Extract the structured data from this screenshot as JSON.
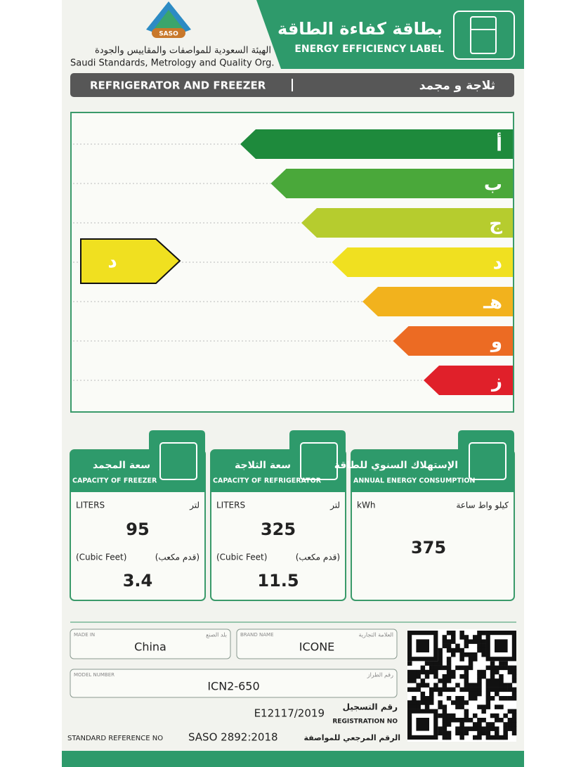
{
  "header": {
    "logo": "SASO",
    "org_ar": "الهيئة السعودية للمواصفات والمقاييس والجودة",
    "org_en": "Saudi Standards, Metrology and Quality Org.",
    "title_ar": "بطاقة كفاءة الطاقة",
    "title_en": "ENERGY EFFICIENCY LABEL"
  },
  "product": {
    "en": "REFRIGERATOR AND FREEZER",
    "ar": "ثلاجة و مجمد"
  },
  "rating": {
    "classes": [
      {
        "label": "أ",
        "color": "#1e8a3c"
      },
      {
        "label": "ب",
        "color": "#4aa83a"
      },
      {
        "label": "ج",
        "color": "#b6cc2e"
      },
      {
        "label": "د",
        "color": "#f0e020"
      },
      {
        "label": "هـ",
        "color": "#f2b21d"
      },
      {
        "label": "و",
        "color": "#ec6b23"
      },
      {
        "label": "ز",
        "color": "#e0202a"
      }
    ],
    "rated": "د",
    "rated_color": "#f0e020"
  },
  "boxes": [
    {
      "title_ar": "سعة المجمد",
      "title_en": "CAPACITY OF FREEZER",
      "unit_en": "LITERS",
      "unit_ar": "لتر",
      "value": "95",
      "unit2_en": "(Cubic Feet)",
      "unit2_ar": "(قدم مكعب)",
      "value2": "3.4"
    },
    {
      "title_ar": "سعة الثلاجة",
      "title_en": "CAPACITY OF REFRIGERATOR",
      "unit_en": "LITERS",
      "unit_ar": "لتر",
      "value": "325",
      "unit2_en": "(Cubic Feet)",
      "unit2_ar": "(قدم مكعب)",
      "value2": "11.5"
    },
    {
      "title_ar": "الإستهلاك السنوي للطاقة",
      "title_en": "ANNUAL ENERGY CONSUMPTION",
      "unit_en": "kWh",
      "unit_ar": "كيلو واط ساعة",
      "value": "375"
    }
  ],
  "footer": {
    "made_in": {
      "label_en": "MADE IN",
      "label_ar": "بلد الصنع",
      "value": "China"
    },
    "brand": {
      "label_en": "BRAND NAME",
      "label_ar": "العلامة التجارية",
      "value": "ICONE"
    },
    "model": {
      "label_en": "MODEL NUMBER",
      "label_ar": "رقم الطراز",
      "value": "ICN2-650"
    },
    "registration": {
      "label_ar": "رقم التسجيل",
      "label_en": "REGISTRATION NO",
      "value": "E12117/2019"
    },
    "standard": {
      "label_en": "STANDARD REFERENCE NO",
      "value": "SASO 2892:2018",
      "label_ar": "الرقم المرجعي للمواصفة"
    }
  }
}
